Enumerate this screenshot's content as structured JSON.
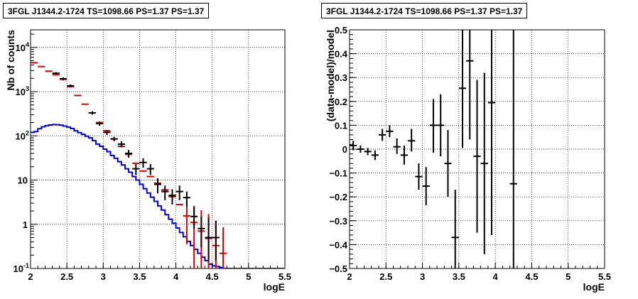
{
  "chart_data": [
    {
      "type": "line",
      "title": "3FGL J1344.2-1724 TS=1098.66 PS=1.37 PS=1.37",
      "xlabel": "logE",
      "ylabel": "Nb of counts",
      "xlim": [
        2,
        5.5
      ],
      "ylim": [
        0.1,
        25000
      ],
      "yscale": "log",
      "grid": true,
      "x_ticks": [
        "2",
        "2.5",
        "3",
        "3.5",
        "4",
        "4.5",
        "5",
        "5.5"
      ],
      "y_ticks": [
        {
          "value": 0.1,
          "label": "10",
          "exp": "-1"
        },
        {
          "value": 1,
          "label": "1",
          "exp": ""
        },
        {
          "value": 10,
          "label": "10",
          "exp": ""
        },
        {
          "value": 100,
          "label": "10",
          "exp": "2"
        },
        {
          "value": 1000,
          "label": "10",
          "exp": "3"
        },
        {
          "value": 10000,
          "label": "10",
          "exp": "4"
        }
      ],
      "colors": {
        "data": "#000000",
        "model_total": "#dd0000",
        "model_background": "#0000dd"
      },
      "series": [
        {
          "key": "model_background",
          "step_edges": [
            2.0,
            2.05,
            2.1,
            2.15,
            2.2,
            2.25,
            2.3,
            2.35,
            2.4,
            2.45,
            2.5,
            2.55,
            2.6,
            2.65,
            2.7,
            2.75,
            2.8,
            2.85,
            2.9,
            2.95,
            3.0,
            3.05,
            3.1,
            3.15,
            3.2,
            3.25,
            3.3,
            3.35,
            3.4,
            3.45,
            3.5,
            3.55,
            3.6,
            3.65,
            3.7,
            3.75,
            3.8,
            3.85,
            3.9,
            3.95,
            4.0,
            4.05,
            4.1,
            4.15,
            4.2,
            4.25,
            4.3,
            4.35,
            4.4,
            4.45,
            4.5,
            4.55,
            4.6,
            4.65,
            4.7,
            5.5
          ],
          "values": [
            120,
            125,
            145,
            160,
            170,
            176,
            180,
            178,
            174,
            166,
            158,
            146,
            130,
            118,
            108,
            98,
            90,
            78,
            65,
            58,
            50,
            44,
            36,
            31,
            26,
            22,
            18,
            15,
            12,
            10,
            8,
            6.4,
            5.1,
            4.1,
            3.3,
            2.6,
            2.1,
            1.65,
            1.3,
            1.05,
            0.82,
            0.65,
            0.52,
            0.41,
            0.33,
            0.27,
            0.22,
            0.18,
            0.15,
            0.125,
            0.115,
            0.11,
            0.105,
            0.1,
            0.1
          ]
        },
        {
          "key": "model_total",
          "x": [
            2.05,
            2.15,
            2.25,
            2.35,
            2.45,
            2.55,
            2.65,
            2.75,
            2.85,
            2.95,
            3.05,
            3.15,
            3.25,
            3.35,
            3.45,
            3.55,
            3.65,
            3.75,
            3.85,
            3.95,
            4.05,
            4.15,
            4.25,
            4.35,
            4.45,
            4.55,
            4.65
          ],
          "y": [
            4500,
            3700,
            2900,
            2400,
            1900,
            1300,
            820,
            520,
            330,
            200,
            130,
            85,
            58,
            38,
            24,
            16,
            12,
            8.5,
            6.0,
            4.2,
            2.8,
            1.55,
            1.1,
            0.7,
            0.48,
            0.33,
            0.22
          ],
          "y_low": [
            4500,
            3700,
            2900,
            2400,
            1900,
            1300,
            820,
            520,
            330,
            200,
            130,
            85,
            58,
            38,
            24,
            16,
            12,
            8.5,
            6.0,
            4.2,
            2.8,
            0.35,
            0.1,
            0.1,
            0.1,
            0.1,
            0.1
          ],
          "y_high": [
            4500,
            3700,
            2900,
            2400,
            1900,
            1300,
            820,
            520,
            330,
            200,
            130,
            85,
            58,
            38,
            24,
            16,
            12,
            8.5,
            6.0,
            4.2,
            2.8,
            3.2,
            2.6,
            2.1,
            1.7,
            1.2,
            0.85
          ]
        },
        {
          "key": "data",
          "x": [
            2.35,
            2.45,
            2.55,
            2.85,
            2.95,
            3.05,
            3.15,
            3.25,
            3.35,
            3.45,
            3.55,
            3.65,
            3.75,
            3.85,
            3.95,
            4.05,
            4.15,
            4.25,
            4.35,
            4.45,
            4.55
          ],
          "y": [
            2600,
            1950,
            1350,
            330,
            190,
            120,
            85,
            65,
            40,
            18,
            25,
            18,
            8,
            5.5,
            4.5,
            5.5,
            4.0,
            1.5,
            0.8,
            0.5,
            0.5
          ],
          "y_low": [
            2450,
            1800,
            1250,
            300,
            170,
            105,
            75,
            55,
            32,
            13,
            19,
            13,
            5,
            3.5,
            2.8,
            3.5,
            2.5,
            0.8,
            0.3,
            0.15,
            0.15
          ],
          "y_high": [
            2750,
            2100,
            1450,
            360,
            210,
            135,
            95,
            75,
            48,
            23,
            31,
            23,
            11,
            7.5,
            6.2,
            7.5,
            5.5,
            2.5,
            1.5,
            1.4,
            1.2
          ]
        }
      ]
    },
    {
      "type": "scatter",
      "title": "3FGL J1344.2-1724 TS=1098.66 PS=1.37 PS=1.37",
      "xlabel": "logE",
      "ylabel": "(data-model)/model",
      "xlim": [
        2,
        5.5
      ],
      "ylim": [
        -0.5,
        0.5
      ],
      "grid": true,
      "x_ticks": [
        "2",
        "2.5",
        "3",
        "3.5",
        "4",
        "4.5",
        "5",
        "5.5"
      ],
      "y_ticks": [
        "-0.5",
        "-0.4",
        "-0.3",
        "-0.2",
        "-0.1",
        "0",
        "0.1",
        "0.2",
        "0.3",
        "0.4",
        "0.5"
      ],
      "color": "#000000",
      "points": [
        {
          "x": 2.05,
          "y": 0.015,
          "lo": -0.005,
          "hi": 0.035
        },
        {
          "x": 2.15,
          "y": 0.0,
          "lo": -0.015,
          "hi": 0.015
        },
        {
          "x": 2.25,
          "y": -0.01,
          "lo": -0.025,
          "hi": 0.005
        },
        {
          "x": 2.35,
          "y": -0.025,
          "lo": -0.045,
          "hi": -0.005
        },
        {
          "x": 2.45,
          "y": 0.06,
          "lo": 0.035,
          "hi": 0.085
        },
        {
          "x": 2.55,
          "y": 0.075,
          "lo": 0.05,
          "hi": 0.1
        },
        {
          "x": 2.65,
          "y": 0.01,
          "lo": -0.02,
          "hi": 0.045
        },
        {
          "x": 2.75,
          "y": -0.025,
          "lo": -0.065,
          "hi": 0.015
        },
        {
          "x": 2.85,
          "y": 0.035,
          "lo": -0.01,
          "hi": 0.085
        },
        {
          "x": 2.95,
          "y": -0.115,
          "lo": -0.17,
          "hi": -0.06
        },
        {
          "x": 3.05,
          "y": -0.155,
          "lo": -0.235,
          "hi": -0.075
        },
        {
          "x": 3.15,
          "y": 0.1,
          "lo": -0.015,
          "hi": 0.21
        },
        {
          "x": 3.25,
          "y": 0.1,
          "lo": -0.03,
          "hi": 0.23
        },
        {
          "x": 3.35,
          "y": -0.06,
          "lo": -0.2,
          "hi": 0.08
        },
        {
          "x": 3.45,
          "y": -0.37,
          "lo": -0.5,
          "hi": -0.17
        },
        {
          "x": 3.55,
          "y": 0.255,
          "lo": 0.005,
          "hi": 0.5
        },
        {
          "x": 3.65,
          "y": 0.37,
          "lo": 0.04,
          "hi": 0.5
        },
        {
          "x": 3.75,
          "y": -0.03,
          "lo": -0.35,
          "hi": 0.29
        },
        {
          "x": 3.85,
          "y": -0.06,
          "lo": -0.44,
          "hi": 0.32
        },
        {
          "x": 3.95,
          "y": 0.195,
          "lo": -0.36,
          "hi": 0.5
        },
        {
          "x": 4.25,
          "y": -0.145,
          "lo": -0.5,
          "hi": 0.5
        }
      ]
    }
  ]
}
